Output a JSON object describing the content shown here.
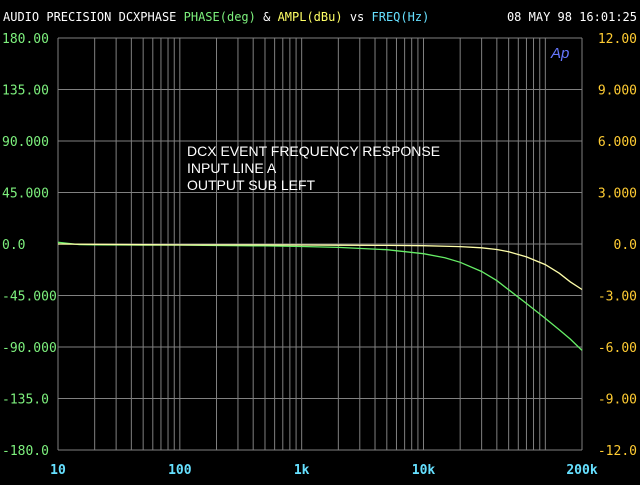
{
  "header": {
    "prefix": "AUDIO PRECISION DCXPHASE ",
    "phase": "PHASE(deg)",
    "amp_sep": " & ",
    "ampl": "AMPL(dBu)",
    "vs": " vs ",
    "freq": "FREQ(Hz)",
    "timestamp": "08 MAY 98 16:01:25"
  },
  "logo": "Ap",
  "colors": {
    "background": "#000000",
    "header_text": "#ffffff",
    "phase": "#7df07d",
    "ampl": "#ffff66",
    "freq": "#66e0ff",
    "left_axis": "#7df07d",
    "right_axis": "#ffcc33",
    "x_axis": "#66e0ff",
    "grid": "#808080",
    "phase_trace": "#66ee66",
    "ampl_trace": "#ffffaa",
    "annotation": "#ffffff",
    "logo": "#6677ff"
  },
  "chart_data": {
    "type": "line",
    "x_scale": "log",
    "xlim": [
      10,
      200000
    ],
    "ylim_left": [
      -180,
      180
    ],
    "ylim_right": [
      -12,
      12
    ],
    "grid": true,
    "x_ticks": [
      {
        "value": 10,
        "label": "10"
      },
      {
        "value": 100,
        "label": "100"
      },
      {
        "value": 1000,
        "label": "1k"
      },
      {
        "value": 10000,
        "label": "10k"
      },
      {
        "value": 200000,
        "label": "200k"
      }
    ],
    "left_ticks": [
      {
        "value": 180,
        "label": "180.00"
      },
      {
        "value": 135,
        "label": "135.00"
      },
      {
        "value": 90,
        "label": "90.000"
      },
      {
        "value": 45,
        "label": "45.000"
      },
      {
        "value": 0,
        "label": "0.0"
      },
      {
        "value": -45,
        "label": "-45.000"
      },
      {
        "value": -90,
        "label": "-90.000"
      },
      {
        "value": -135,
        "label": "-135.0"
      },
      {
        "value": -180,
        "label": "-180.0"
      }
    ],
    "right_ticks": [
      {
        "value": 12,
        "label": "12.00"
      },
      {
        "value": 9,
        "label": "9.000"
      },
      {
        "value": 6,
        "label": "6.000"
      },
      {
        "value": 3,
        "label": "3.000"
      },
      {
        "value": 0,
        "label": "0.0"
      },
      {
        "value": -3,
        "label": "-3.00"
      },
      {
        "value": -6,
        "label": "-6.00"
      },
      {
        "value": -9,
        "label": "-9.00"
      },
      {
        "value": -12,
        "label": "-12.0"
      }
    ],
    "annotations": [
      "DCX EVENT FREQUENCY RESPONSE",
      "INPUT LINE A",
      "OUTPUT SUB LEFT"
    ],
    "series": [
      {
        "name": "PHASE(deg)",
        "axis": "left",
        "x": [
          10,
          15,
          20,
          50,
          100,
          200,
          500,
          1000,
          2000,
          5000,
          10000,
          15000,
          20000,
          30000,
          40000,
          50000,
          70000,
          100000,
          130000,
          160000,
          200000
        ],
        "y": [
          1.5,
          -0.5,
          -0.8,
          -1.0,
          -1.0,
          -1.3,
          -1.7,
          -2.2,
          -3.0,
          -5.0,
          -8.5,
          -12,
          -16,
          -24,
          -32,
          -40,
          -52,
          -65,
          -75,
          -83,
          -93
        ]
      },
      {
        "name": "AMPL(dBu)",
        "axis": "right",
        "x": [
          10,
          20,
          50,
          100,
          200,
          500,
          1000,
          2000,
          5000,
          10000,
          20000,
          30000,
          40000,
          50000,
          70000,
          100000,
          130000,
          160000,
          200000
        ],
        "y": [
          0.0,
          -0.02,
          -0.04,
          -0.05,
          -0.05,
          -0.05,
          -0.06,
          -0.07,
          -0.08,
          -0.1,
          -0.15,
          -0.22,
          -0.32,
          -0.45,
          -0.75,
          -1.2,
          -1.7,
          -2.2,
          -2.65
        ]
      }
    ]
  }
}
